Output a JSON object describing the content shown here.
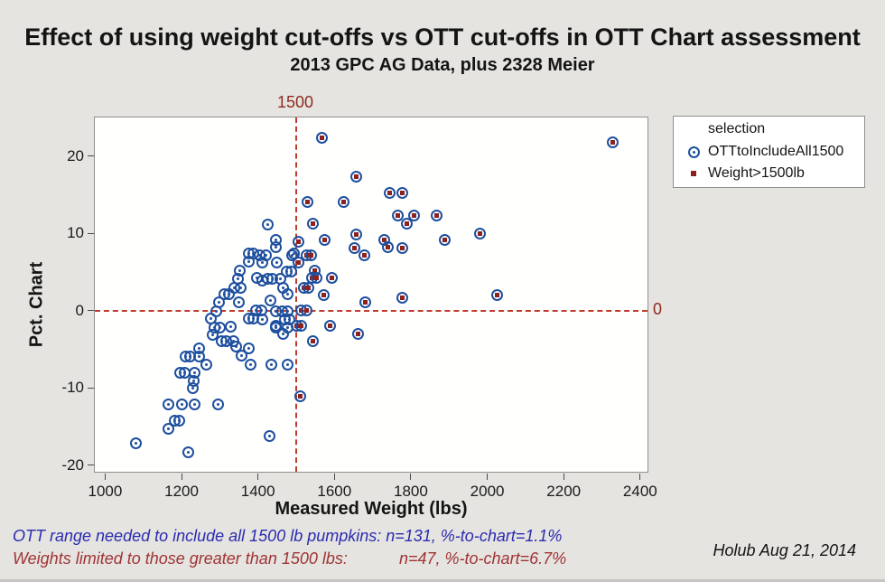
{
  "header": {
    "title": "Effect of using weight cut-offs vs OTT cut-offs in OTT Chart assessment",
    "subtitle": "2013 GPC AG Data, plus 2328 Meier"
  },
  "annotations": {
    "note_blue": "OTT range needed to include all 1500 lb pumpkins: n=131, %-to-chart=1.1%",
    "note_red_label": "Weights limited to those greater than 1500 lbs:",
    "note_red_stats": "n=47, %-to-chart=6.7%",
    "credit": "Holub Aug 21, 2014"
  },
  "colors": {
    "background": "#e5e4e1",
    "marker_blue": "#1d4f9e",
    "marker_red": "#8b2222",
    "reference_line": "#c03b2e",
    "reference_label": "#8e2a20",
    "note_blue": "#2b2bb0",
    "note_red": "#a03434"
  },
  "chart_data": {
    "type": "scatter",
    "title": "Effect of using weight cut-offs vs OTT cut-offs in OTT Chart assessment",
    "subtitle": "2013 GPC AG Data, plus 2328 Meier",
    "xlabel": "Measured Weight (lbs)",
    "ylabel": "Pct. Chart",
    "xlim": [
      973,
      2424
    ],
    "ylim": [
      -21.1,
      25.0
    ],
    "x_ticks": [
      1000,
      1200,
      1400,
      1600,
      1800,
      2000,
      2200,
      2400
    ],
    "y_ticks": [
      20,
      10,
      0,
      -10,
      -20
    ],
    "grid": false,
    "legend": {
      "title": "selection",
      "position": "upper-right-outside",
      "entries": [
        {
          "label": "OTTtoIncludeAll1500",
          "marker": "circle-dot",
          "color": "#1d4f9e"
        },
        {
          "label": "Weight>1500lb",
          "marker": "square",
          "color": "#8b2222"
        }
      ]
    },
    "reference_lines": {
      "vertical": {
        "x": 1500,
        "label": "1500"
      },
      "horizontal": {
        "y": 0,
        "label": "0"
      }
    },
    "series": [
      {
        "name": "OTTtoIncludeAll1500",
        "marker": "circle-dot",
        "ring_color": "#1d4f9e",
        "points": [
          [
            1298,
            1.1
          ],
          [
            1349,
            1.1
          ],
          [
            1432,
            1.3
          ],
          [
            1292,
            -0.1
          ],
          [
            1395,
            0
          ],
          [
            1409,
            0
          ],
          [
            1375,
            -1
          ],
          [
            1387,
            -1
          ],
          [
            1411,
            -1.1
          ],
          [
            1277,
            -1
          ],
          [
            1446,
            -2.2
          ],
          [
            1286,
            -2.2
          ],
          [
            1301,
            -2.2
          ],
          [
            1328,
            -2.1
          ],
          [
            1282,
            -3.1
          ],
          [
            1306,
            -4
          ],
          [
            1318,
            -4
          ],
          [
            1335,
            -4
          ],
          [
            1343,
            -4.7
          ],
          [
            1377,
            -4.9
          ],
          [
            1358,
            -5.8
          ],
          [
            1381,
            -7
          ],
          [
            1434,
            -7
          ],
          [
            1211,
            -5.9
          ],
          [
            1223,
            -5.9
          ],
          [
            1247,
            -4.9
          ],
          [
            1247,
            -5.9
          ],
          [
            1196,
            -8.1
          ],
          [
            1207,
            -8.1
          ],
          [
            1233,
            -8
          ],
          [
            1231,
            -9.1
          ],
          [
            1230,
            -10
          ],
          [
            1265,
            -7
          ],
          [
            1166,
            -12.1
          ],
          [
            1202,
            -12.1
          ],
          [
            1233,
            -12.1
          ],
          [
            1296,
            -12.1
          ],
          [
            1183,
            -14.2
          ],
          [
            1194,
            -14.2
          ],
          [
            1166,
            -15.3
          ],
          [
            1080,
            -17.2
          ],
          [
            1218,
            -18.3
          ],
          [
            1430,
            -16.2
          ],
          [
            1448,
            -0.1
          ],
          [
            1464,
            -0.1
          ],
          [
            1477,
            -0.1
          ],
          [
            1471,
            -1.1
          ],
          [
            1483,
            -1.1
          ],
          [
            1448,
            -2
          ],
          [
            1477,
            -2.2
          ],
          [
            1465,
            -3
          ],
          [
            1478,
            -7
          ],
          [
            1426,
            11.1
          ],
          [
            1446,
            9.1
          ],
          [
            1448,
            8.2
          ],
          [
            1495,
            7.4
          ],
          [
            1375,
            7.4
          ],
          [
            1387,
            7.4
          ],
          [
            1404,
            7.1
          ],
          [
            1420,
            7.1
          ],
          [
            1375,
            6.3
          ],
          [
            1450,
            6.2
          ],
          [
            1412,
            6.2
          ],
          [
            1352,
            5.2
          ],
          [
            1475,
            5
          ],
          [
            1487,
            5
          ],
          [
            1348,
            4.1
          ],
          [
            1397,
            4.2
          ],
          [
            1412,
            3.9
          ],
          [
            1426,
            4.1
          ],
          [
            1438,
            4.1
          ],
          [
            1458,
            4.1
          ],
          [
            1337,
            3
          ],
          [
            1355,
            3
          ],
          [
            1465,
            3
          ],
          [
            1478,
            2.1
          ],
          [
            1311,
            2.1
          ],
          [
            1323,
            2.1
          ],
          [
            1489,
            7.2
          ]
        ]
      },
      {
        "name": "Weight>1500lb",
        "marker": "circle-square",
        "ring_color": "#1d4f9e",
        "fill_color": "#8b2222",
        "points": [
          [
            1568,
            22.4
          ],
          [
            2328,
            21.8
          ],
          [
            1656,
            17.3
          ],
          [
            1745,
            15.2
          ],
          [
            1777,
            15.2
          ],
          [
            1529,
            14.1
          ],
          [
            1625,
            14.1
          ],
          [
            1765,
            12.3
          ],
          [
            1809,
            12.3
          ],
          [
            1868,
            12.3
          ],
          [
            1790,
            11.2
          ],
          [
            1543,
            11.3
          ],
          [
            1505,
            8.9
          ],
          [
            1574,
            9.1
          ],
          [
            1656,
            9.9
          ],
          [
            1889,
            9.1
          ],
          [
            1980,
            10
          ],
          [
            1731,
            9.1
          ],
          [
            1741,
            8.2
          ],
          [
            1777,
            8.1
          ],
          [
            1653,
            8.1
          ],
          [
            1678,
            7.2
          ],
          [
            1526,
            7.2
          ],
          [
            1538,
            7.2
          ],
          [
            1507,
            6.2
          ],
          [
            1549,
            5.2
          ],
          [
            1541,
            4.2
          ],
          [
            1554,
            4.2
          ],
          [
            1594,
            4.2
          ],
          [
            1521,
            3
          ],
          [
            1533,
            3
          ],
          [
            1572,
            2
          ],
          [
            1680,
            1.1
          ],
          [
            1777,
            1.7
          ],
          [
            2026,
            2
          ],
          [
            1514,
            0
          ],
          [
            1526,
            0
          ],
          [
            1502,
            -2
          ],
          [
            1514,
            -2
          ],
          [
            1588,
            -2
          ],
          [
            1661,
            -3
          ],
          [
            1543,
            -4
          ],
          [
            1511,
            -11.1
          ]
        ]
      }
    ]
  }
}
